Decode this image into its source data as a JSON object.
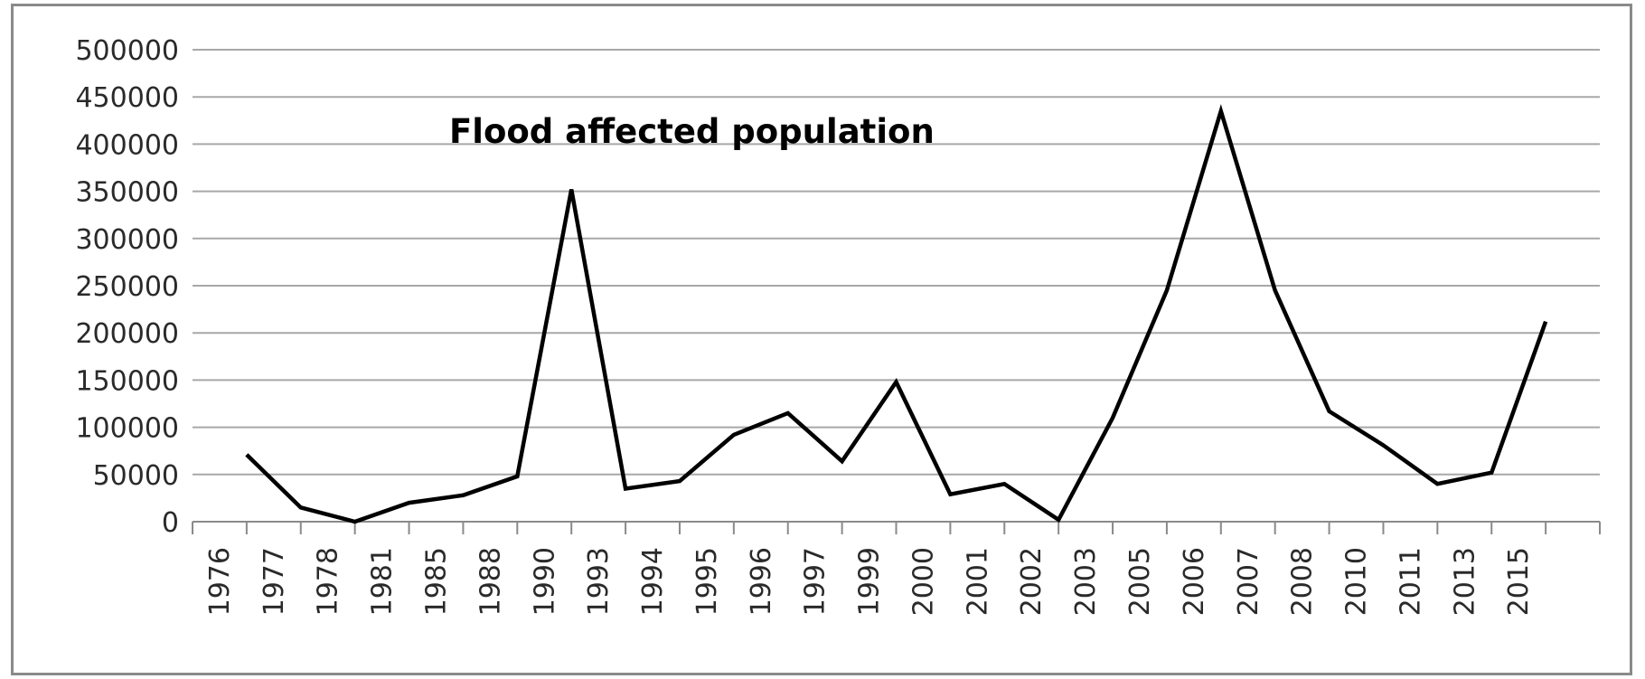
{
  "chart_data": {
    "type": "line",
    "title": "Flood affected population",
    "xlabel": "",
    "ylabel": "",
    "ylim": [
      0,
      500000
    ],
    "yticks": [
      0,
      50000,
      100000,
      150000,
      200000,
      250000,
      300000,
      350000,
      400000,
      450000,
      500000
    ],
    "grid": true,
    "categories": [
      "1976",
      "1977",
      "1978",
      "1981",
      "1985",
      "1988",
      "1990",
      "1993",
      "1994",
      "1995",
      "1996",
      "1997",
      "1999",
      "2000",
      "2001",
      "2002",
      "2003",
      "2005",
      "2006",
      "2007",
      "2008",
      "2010",
      "2011",
      "2013",
      "2015"
    ],
    "series": [
      {
        "values": [
          71000,
          15000,
          0,
          20000,
          28000,
          48000,
          352000,
          35000,
          43000,
          92000,
          115000,
          64000,
          148000,
          29000,
          40000,
          2000,
          110000,
          245000,
          435000,
          245000,
          117000,
          81000,
          40000,
          52000,
          212000
        ]
      }
    ],
    "line_color": "#000000"
  }
}
